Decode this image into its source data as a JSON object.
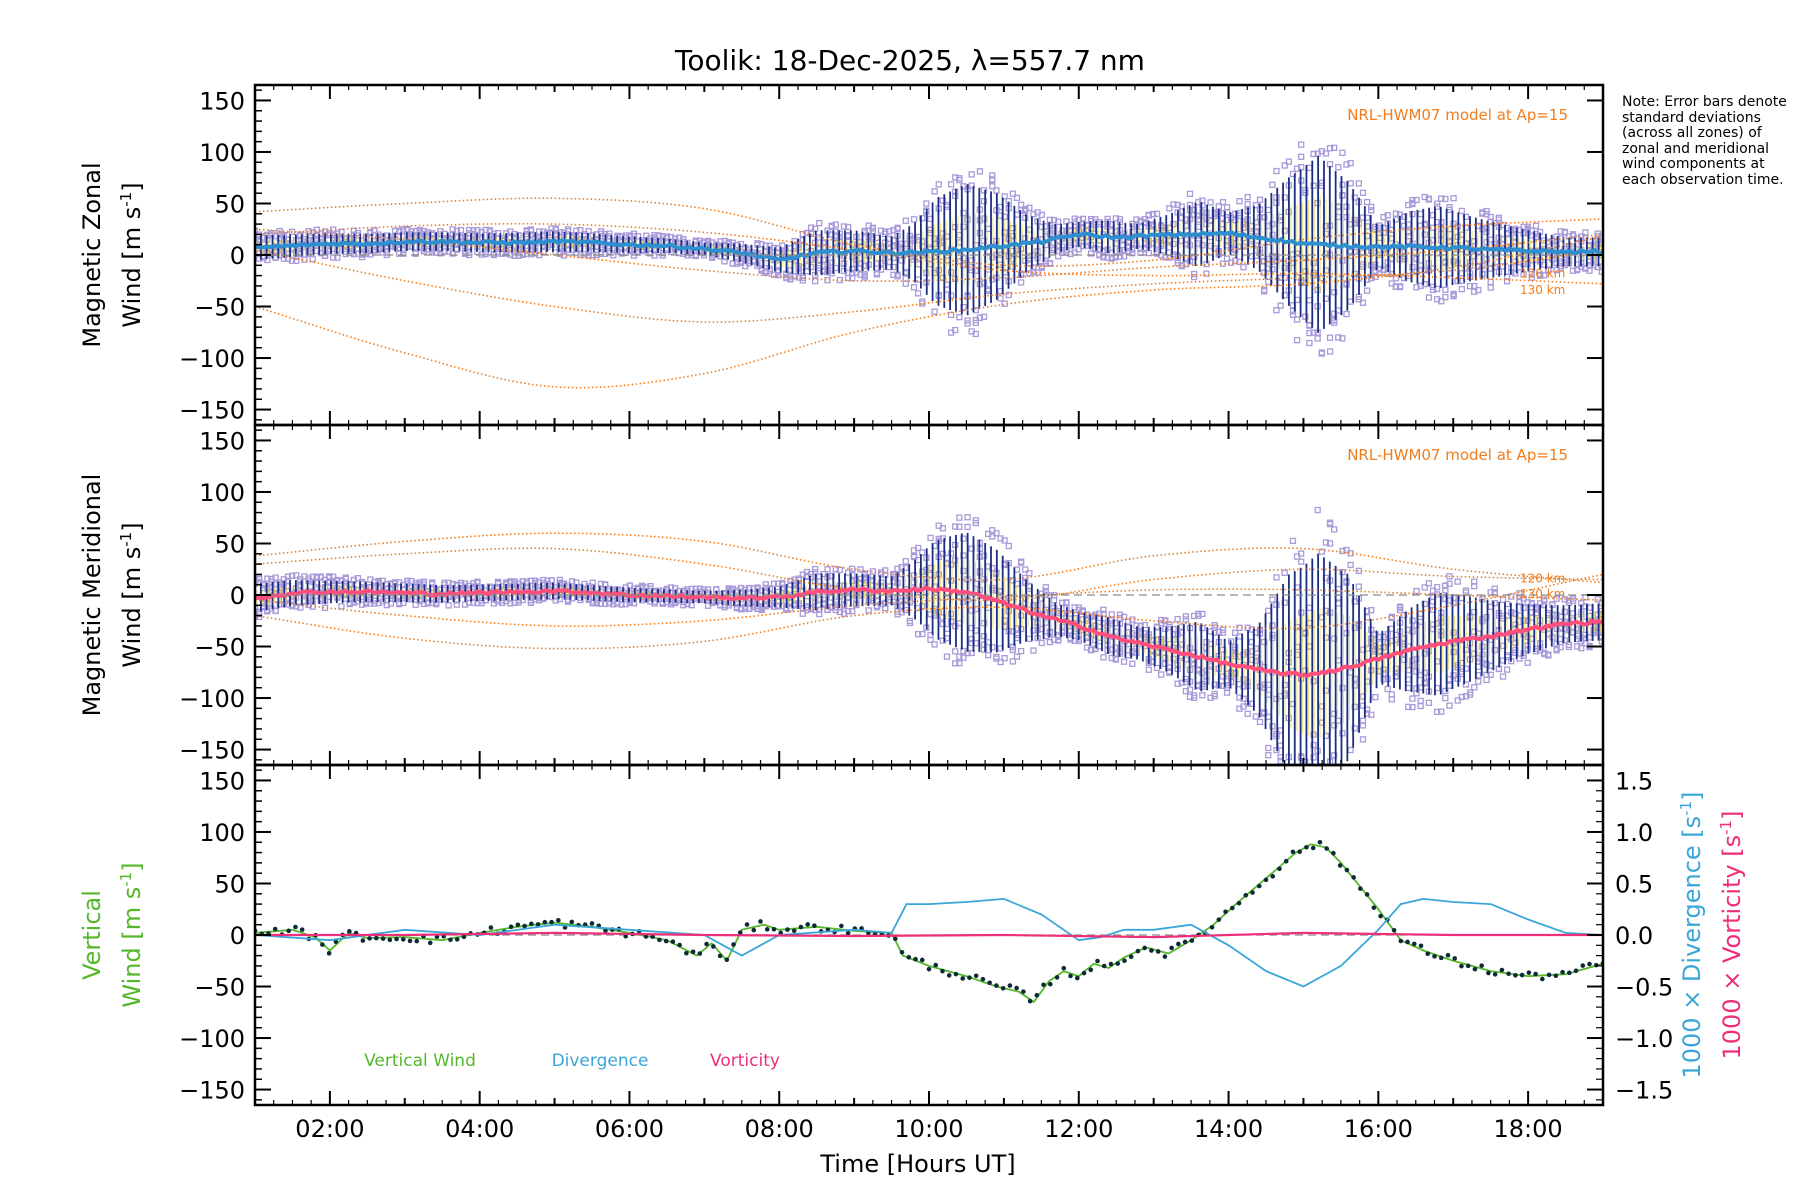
{
  "title": "Toolik: 18-Dec-2025, λ=557.7 nm",
  "note": "Note: Error bars denote standard deviations (across all zones) of zonal and meridional wind components at each observation time.",
  "colors": {
    "axis": "#000000",
    "zonal_mean": "#2e8fd0",
    "meridional_mean": "#ff4f7a",
    "model": "#f07d1e",
    "errorbar": "#1a2f80",
    "scatter": "#a99ad9",
    "vertical": "#55b82c",
    "vertical_marker": "#0d2a38",
    "divergence": "#3aa6d8",
    "vorticity": "#ee2e78",
    "dashed_zero": "#8a8a8a"
  },
  "chart_data": [
    {
      "type": "line",
      "panel": "zonal",
      "ylabel_line1": "Magnetic Zonal",
      "ylabel_line2": "Wind [m s",
      "ylabel_sup": "-1",
      "ylabel_end": "]",
      "ylim": [
        -165,
        165
      ],
      "yticks": [
        -150,
        -100,
        -50,
        0,
        50,
        100,
        150
      ],
      "xlim": [
        1.0,
        19.0
      ],
      "model_label": "NRL-HWM07 model at Ap=15",
      "altitude_labels": [
        "120 km",
        "130 km"
      ],
      "altitude_label_values": [
        -18,
        -34
      ],
      "mean_series": {
        "name": "Zonal mean",
        "x": [
          1.0,
          1.5,
          2.0,
          2.5,
          3.0,
          3.5,
          4.0,
          4.5,
          5.0,
          5.5,
          6.0,
          6.5,
          7.0,
          7.5,
          8.0,
          8.5,
          9.0,
          9.5,
          10.0,
          10.5,
          11.0,
          11.5,
          12.0,
          12.5,
          13.0,
          13.5,
          14.0,
          14.5,
          15.0,
          15.5,
          16.0,
          16.5,
          17.0,
          17.5,
          18.0,
          18.5,
          19.0
        ],
        "values": [
          7,
          9,
          11,
          11,
          13,
          13,
          12,
          12,
          13,
          12,
          10,
          9,
          6,
          2,
          -5,
          2,
          4,
          2,
          3,
          5,
          9,
          13,
          20,
          17,
          19,
          20,
          21,
          16,
          11,
          9,
          8,
          8,
          7,
          5,
          4,
          3,
          3
        ]
      },
      "spread": {
        "x": [
          1.0,
          2.0,
          3.0,
          4.0,
          5.0,
          6.0,
          7.0,
          8.0,
          8.5,
          9.0,
          9.5,
          9.8,
          10.1,
          10.5,
          10.9,
          11.3,
          11.7,
          12.0,
          12.4,
          12.8,
          13.2,
          13.6,
          14.0,
          14.4,
          14.8,
          15.2,
          15.6,
          16.0,
          16.4,
          16.8,
          17.2,
          17.6,
          18.0,
          18.5,
          19.0
        ],
        "sigma": [
          12,
          10,
          9,
          9,
          10,
          8,
          6,
          12,
          22,
          20,
          16,
          28,
          52,
          64,
          52,
          28,
          14,
          12,
          16,
          12,
          20,
          32,
          20,
          32,
          62,
          86,
          62,
          20,
          34,
          40,
          32,
          26,
          20,
          14,
          14
        ]
      },
      "model_curves": [
        {
          "x": [
            1.0,
            3.0,
            5.0,
            7.0,
            9.0,
            11.0,
            13.0,
            15.0,
            17.0,
            19.0
          ],
          "values": [
            42,
            50,
            55,
            45,
            10,
            -10,
            -5,
            15,
            28,
            35
          ]
        },
        {
          "x": [
            1.0,
            3.0,
            5.0,
            7.0,
            9.0,
            11.0,
            13.0,
            15.0,
            17.0,
            19.0
          ],
          "values": [
            -50,
            -95,
            -128,
            -115,
            -75,
            -48,
            -34,
            -28,
            -12,
            18
          ]
        },
        {
          "x": [
            1.0,
            3.0,
            5.0,
            7.0,
            9.0,
            11.0,
            13.0,
            15.0,
            17.0,
            19.0
          ],
          "values": [
            5,
            -25,
            -50,
            -65,
            -55,
            -38,
            -28,
            -22,
            -15,
            5
          ]
        },
        {
          "x": [
            1.0,
            3.0,
            5.0,
            7.0,
            9.0,
            11.0,
            13.0,
            15.0,
            17.0,
            19.0
          ],
          "values": [
            20,
            28,
            30,
            22,
            5,
            -15,
            -20,
            -18,
            -22,
            -28
          ]
        },
        {
          "x": [
            1.0,
            3.0,
            5.0,
            7.0,
            9.0,
            11.0,
            13.0,
            15.0,
            17.0,
            19.0
          ],
          "values": [
            25,
            15,
            0,
            -15,
            -25,
            -22,
            -12,
            -5,
            5,
            20
          ]
        }
      ]
    },
    {
      "type": "line",
      "panel": "meridional",
      "ylabel_line1": "Magnetic Meridional",
      "ylabel_line2": "Wind [m s",
      "ylabel_sup": "-1",
      "ylabel_end": "]",
      "ylim": [
        -165,
        165
      ],
      "yticks": [
        -150,
        -100,
        -50,
        0,
        50,
        100,
        150
      ],
      "xlim": [
        1.0,
        19.0
      ],
      "model_label": "NRL-HWM07 model at Ap=15",
      "altitude_labels": [
        "120 km",
        "130 km"
      ],
      "altitude_label_values": [
        16,
        1
      ],
      "mean_series": {
        "name": "Meridional mean",
        "x": [
          1.0,
          1.5,
          2.0,
          2.5,
          3.0,
          3.5,
          4.0,
          4.5,
          5.0,
          5.5,
          6.0,
          6.5,
          7.0,
          7.5,
          8.0,
          8.5,
          9.0,
          9.5,
          10.0,
          10.5,
          11.0,
          11.5,
          12.0,
          12.5,
          13.0,
          13.5,
          14.0,
          14.5,
          15.0,
          15.5,
          16.0,
          16.5,
          17.0,
          17.5,
          18.0,
          18.5,
          19.0
        ],
        "values": [
          -3,
          2,
          3,
          3,
          2,
          1,
          2,
          3,
          4,
          2,
          0,
          -1,
          -2,
          -3,
          -2,
          3,
          5,
          4,
          6,
          3,
          -8,
          -20,
          -30,
          -42,
          -50,
          -58,
          -67,
          -74,
          -78,
          -72,
          -62,
          -52,
          -45,
          -40,
          -33,
          -28,
          -26
        ]
      },
      "spread": {
        "x": [
          1.0,
          2.0,
          3.0,
          4.0,
          5.0,
          6.0,
          7.0,
          8.0,
          8.5,
          9.0,
          9.5,
          9.8,
          10.1,
          10.5,
          10.9,
          11.3,
          11.7,
          12.0,
          12.4,
          12.8,
          13.2,
          13.6,
          14.0,
          14.4,
          14.8,
          15.2,
          15.6,
          16.0,
          16.4,
          16.8,
          17.2,
          17.6,
          18.0,
          18.5,
          19.0
        ],
        "sigma": [
          14,
          11,
          9,
          8,
          8,
          7,
          6,
          10,
          18,
          16,
          14,
          28,
          48,
          58,
          50,
          30,
          16,
          14,
          18,
          16,
          22,
          34,
          22,
          44,
          96,
          116,
          90,
          24,
          40,
          50,
          42,
          32,
          24,
          18,
          18
        ]
      },
      "model_curves": [
        {
          "x": [
            1.0,
            3.0,
            5.0,
            7.0,
            9.0,
            11.0,
            13.0,
            15.0,
            17.0,
            19.0
          ],
          "values": [
            38,
            52,
            60,
            52,
            25,
            15,
            38,
            45,
            25,
            12
          ]
        },
        {
          "x": [
            1.0,
            3.0,
            5.0,
            7.0,
            9.0,
            11.0,
            13.0,
            15.0,
            17.0,
            19.0
          ],
          "values": [
            -20,
            -42,
            -52,
            -45,
            -20,
            -12,
            -25,
            -32,
            -10,
            20
          ]
        },
        {
          "x": [
            1.0,
            3.0,
            5.0,
            7.0,
            9.0,
            11.0,
            13.0,
            15.0,
            17.0,
            19.0
          ],
          "values": [
            30,
            40,
            45,
            30,
            5,
            -5,
            15,
            25,
            18,
            15
          ]
        },
        {
          "x": [
            1.0,
            3.0,
            5.0,
            7.0,
            9.0,
            11.0,
            13.0,
            15.0,
            17.0,
            19.0
          ],
          "values": [
            -5,
            -20,
            -30,
            -25,
            -10,
            -2,
            5,
            5,
            0,
            -5
          ]
        }
      ]
    },
    {
      "type": "line",
      "panel": "vertical",
      "ylabel_line1": "Vertical",
      "ylabel_line2": "Wind [m s",
      "ylabel_sup": "-1",
      "ylabel_end": "]",
      "ylim": [
        -165,
        165
      ],
      "yticks": [
        -150,
        -100,
        -50,
        0,
        50,
        100,
        150
      ],
      "xlim": [
        1.0,
        19.0
      ],
      "xticks": [
        "02:00",
        "04:00",
        "06:00",
        "08:00",
        "10:00",
        "12:00",
        "14:00",
        "16:00",
        "18:00"
      ],
      "xtick_values": [
        2,
        4,
        6,
        8,
        10,
        12,
        14,
        16,
        18
      ],
      "xlabel": "Time [Hours UT]",
      "y2lim": [
        -1.65,
        1.65
      ],
      "y2ticks": [
        "-1.5",
        "-1.0",
        "-0.5",
        "0.0",
        "0.5",
        "1.0",
        "1.5"
      ],
      "y2tick_values": [
        -1.5,
        -1.0,
        -0.5,
        0.0,
        0.5,
        1.0,
        1.5
      ],
      "y2label_div": "1000 × Divergence [s",
      "y2label_vort": "1000 × Vorticity [s",
      "y2label_sup": "-1",
      "y2label_end": "]",
      "legend": [
        "Vertical Wind",
        "Divergence",
        "Vorticity"
      ],
      "series": [
        {
          "name": "Vertical Wind",
          "axis": "left",
          "x": [
            1.0,
            1.5,
            1.8,
            2.0,
            2.25,
            2.5,
            3.0,
            3.5,
            4.0,
            4.5,
            5.0,
            5.5,
            6.0,
            6.5,
            6.9,
            7.1,
            7.3,
            7.5,
            7.8,
            8.0,
            8.5,
            9.0,
            9.5,
            9.65,
            10.0,
            10.5,
            10.9,
            11.2,
            11.4,
            11.6,
            11.8,
            12.0,
            12.2,
            12.4,
            12.6,
            12.9,
            13.2,
            13.5,
            13.8,
            14.1,
            14.5,
            14.9,
            15.1,
            15.3,
            15.5,
            15.7,
            16.0,
            16.3,
            16.6,
            17.0,
            17.5,
            18.0,
            18.5,
            19.0
          ],
          "values": [
            2,
            5,
            -2,
            -15,
            2,
            -3,
            -2,
            -5,
            2,
            8,
            12,
            8,
            2,
            -5,
            -20,
            -8,
            -25,
            5,
            10,
            5,
            8,
            4,
            2,
            -20,
            -30,
            -40,
            -50,
            -55,
            -65,
            -45,
            -35,
            -40,
            -28,
            -32,
            -22,
            -12,
            -18,
            -5,
            10,
            30,
            55,
            80,
            88,
            85,
            70,
            52,
            25,
            -5,
            -15,
            -25,
            -35,
            -40,
            -38,
            -28
          ]
        },
        {
          "name": "Divergence",
          "axis": "right",
          "x": [
            1.0,
            2.0,
            3.0,
            4.0,
            5.0,
            6.0,
            7.0,
            7.5,
            8.0,
            9.0,
            9.5,
            9.7,
            10.0,
            10.5,
            11.0,
            11.5,
            12.0,
            12.3,
            12.6,
            13.0,
            13.5,
            14.0,
            14.5,
            15.0,
            15.5,
            16.0,
            16.3,
            16.6,
            17.0,
            17.5,
            18.0,
            18.5,
            19.0
          ],
          "values": [
            0.0,
            -0.05,
            0.05,
            0.0,
            0.1,
            0.05,
            0.0,
            -0.2,
            0.0,
            0.05,
            0.02,
            0.3,
            0.3,
            0.32,
            0.35,
            0.2,
            -0.05,
            -0.02,
            0.05,
            0.05,
            0.1,
            -0.1,
            -0.35,
            -0.5,
            -0.3,
            0.05,
            0.3,
            0.35,
            0.32,
            0.3,
            0.15,
            0.02,
            0.0
          ]
        },
        {
          "name": "Vorticity",
          "axis": "right",
          "x": [
            1.0,
            3.0,
            5.0,
            7.0,
            9.0,
            11.0,
            13.0,
            15.0,
            17.0,
            19.0
          ],
          "values": [
            0.0,
            0.0,
            0.02,
            0.0,
            -0.01,
            0.0,
            -0.02,
            0.02,
            0.0,
            0.0
          ]
        }
      ]
    }
  ]
}
